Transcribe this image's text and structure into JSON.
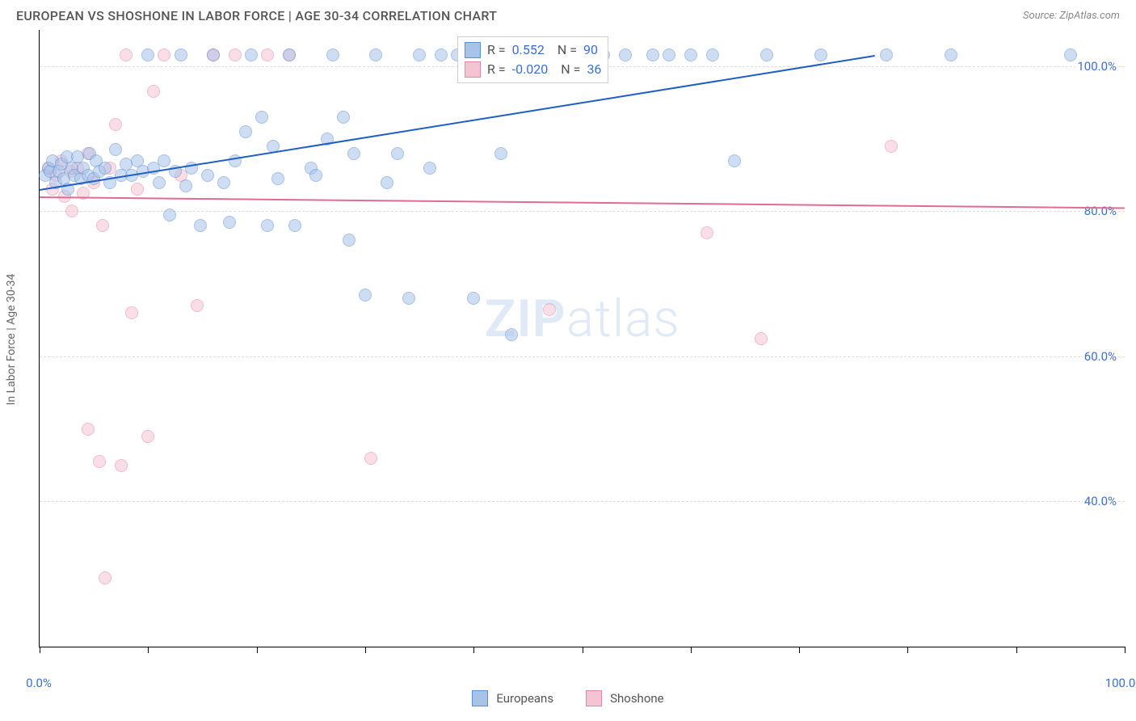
{
  "title": "EUROPEAN VS SHOSHONE IN LABOR FORCE | AGE 30-34 CORRELATION CHART",
  "source": "Source: ZipAtlas.com",
  "yaxis_label": "In Labor Force | Age 30-34",
  "watermark": {
    "part1": "ZIP",
    "part2": "atlas"
  },
  "chart": {
    "type": "scatter",
    "xlim": [
      0,
      100
    ],
    "ylim": [
      20,
      105
    ],
    "yticks": [
      40,
      60,
      80,
      100
    ],
    "ytick_labels": [
      "40.0%",
      "60.0%",
      "80.0%",
      "100.0%"
    ],
    "xticks": [
      0,
      10,
      20,
      30,
      40,
      50,
      60,
      70,
      80,
      90,
      100
    ],
    "xtick_labels": {
      "0": "0.0%",
      "100": "100.0%"
    },
    "grid_color": "#dddddd",
    "background_color": "#ffffff",
    "point_radius": 8,
    "point_opacity": 0.55,
    "series": [
      {
        "name": "Europeans",
        "fill": "#a8c3e8",
        "stroke": "#5a8fd6",
        "reg_color": "#1e5fc4",
        "reg_line": {
          "x1": 0,
          "y1": 83,
          "x2": 77,
          "y2": 101.5
        },
        "r_value": "0.552",
        "n_value": "90",
        "points": [
          [
            0.5,
            85
          ],
          [
            0.8,
            86
          ],
          [
            1.0,
            85.5
          ],
          [
            1.2,
            87
          ],
          [
            1.5,
            84
          ],
          [
            1.8,
            85.5
          ],
          [
            2.0,
            86.5
          ],
          [
            2.2,
            84.5
          ],
          [
            2.5,
            87.5
          ],
          [
            2.6,
            83
          ],
          [
            3.0,
            86
          ],
          [
            3.2,
            85
          ],
          [
            3.5,
            87.5
          ],
          [
            3.8,
            84.5
          ],
          [
            4.0,
            86
          ],
          [
            4.5,
            85
          ],
          [
            4.6,
            88
          ],
          [
            5.0,
            84.5
          ],
          [
            5.2,
            87
          ],
          [
            5.5,
            85.5
          ],
          [
            6.0,
            86
          ],
          [
            6.5,
            84
          ],
          [
            7.0,
            88.5
          ],
          [
            7.5,
            85
          ],
          [
            8.0,
            86.5
          ],
          [
            8.5,
            85
          ],
          [
            9.0,
            87
          ],
          [
            9.5,
            85.5
          ],
          [
            10.0,
            101.5
          ],
          [
            10.5,
            86
          ],
          [
            11.0,
            84
          ],
          [
            11.5,
            87
          ],
          [
            12.0,
            79.5
          ],
          [
            12.5,
            85.5
          ],
          [
            13.0,
            101.5
          ],
          [
            13.5,
            83.5
          ],
          [
            14.0,
            86
          ],
          [
            14.8,
            78
          ],
          [
            15.5,
            85
          ],
          [
            16.0,
            101.5
          ],
          [
            17.0,
            84
          ],
          [
            17.5,
            78.5
          ],
          [
            18.0,
            87
          ],
          [
            19.0,
            91
          ],
          [
            19.5,
            101.5
          ],
          [
            20.5,
            93
          ],
          [
            21.0,
            78
          ],
          [
            21.5,
            89
          ],
          [
            22.0,
            84.5
          ],
          [
            23.0,
            101.5
          ],
          [
            23.5,
            78
          ],
          [
            25.0,
            86
          ],
          [
            25.5,
            85
          ],
          [
            26.5,
            90
          ],
          [
            27.0,
            101.5
          ],
          [
            28.0,
            93
          ],
          [
            28.5,
            76
          ],
          [
            29.0,
            88
          ],
          [
            30.0,
            68.5
          ],
          [
            31.0,
            101.5
          ],
          [
            32.0,
            84
          ],
          [
            33.0,
            88
          ],
          [
            34.0,
            68
          ],
          [
            35.0,
            101.5
          ],
          [
            36.0,
            86
          ],
          [
            37.0,
            101.5
          ],
          [
            38.5,
            101.5
          ],
          [
            40.0,
            68
          ],
          [
            41.0,
            101.5
          ],
          [
            42.5,
            88
          ],
          [
            43.5,
            63
          ],
          [
            44.0,
            101.5
          ],
          [
            45.0,
            101.5
          ],
          [
            46.0,
            101.5
          ],
          [
            47.5,
            101.5
          ],
          [
            48.0,
            101.5
          ],
          [
            49.0,
            101.5
          ],
          [
            51.0,
            101.5
          ],
          [
            52.0,
            101.5
          ],
          [
            54.0,
            101.5
          ],
          [
            56.5,
            101.5
          ],
          [
            58.0,
            101.5
          ],
          [
            60.0,
            101.5
          ],
          [
            62.0,
            101.5
          ],
          [
            64.0,
            87
          ],
          [
            67.0,
            101.5
          ],
          [
            72.0,
            101.5
          ],
          [
            78.0,
            101.5
          ],
          [
            84.0,
            101.5
          ],
          [
            95.0,
            101.5
          ]
        ]
      },
      {
        "name": "Shoshone",
        "fill": "#f5c4d2",
        "stroke": "#e785a5",
        "reg_color": "#e06c93",
        "reg_line": {
          "x1": 0,
          "y1": 82,
          "x2": 100,
          "y2": 80.5
        },
        "r_value": "-0.020",
        "n_value": "36",
        "points": [
          [
            0.8,
            86
          ],
          [
            1.2,
            83
          ],
          [
            1.5,
            85
          ],
          [
            2.0,
            87
          ],
          [
            2.3,
            82
          ],
          [
            2.8,
            85.5
          ],
          [
            3.0,
            80
          ],
          [
            3.5,
            86
          ],
          [
            4.0,
            82.5
          ],
          [
            4.5,
            88
          ],
          [
            5.0,
            84
          ],
          [
            5.8,
            78
          ],
          [
            6.5,
            86
          ],
          [
            7.0,
            92
          ],
          [
            8.0,
            101.5
          ],
          [
            8.5,
            66
          ],
          [
            9.0,
            83
          ],
          [
            10.5,
            96.5
          ],
          [
            11.5,
            101.5
          ],
          [
            13.0,
            85
          ],
          [
            14.5,
            67
          ],
          [
            16.0,
            101.5
          ],
          [
            18.0,
            101.5
          ],
          [
            21.0,
            101.5
          ],
          [
            23.0,
            101.5
          ],
          [
            30.5,
            46
          ],
          [
            47.0,
            66.5
          ],
          [
            50.0,
            101.5
          ],
          [
            61.5,
            77
          ],
          [
            66.5,
            62.5
          ],
          [
            78.5,
            89
          ],
          [
            4.5,
            50
          ],
          [
            5.5,
            45.5
          ],
          [
            7.5,
            45
          ],
          [
            10.0,
            49
          ],
          [
            6.0,
            29.5
          ]
        ]
      }
    ]
  },
  "stats_box": {
    "top_pct": 1.0,
    "left_pct": 38.5,
    "rows": [
      {
        "series": 0,
        "r_label": "R =",
        "n_label": "N ="
      },
      {
        "series": 1,
        "r_label": "R =",
        "n_label": "N ="
      }
    ]
  },
  "bottom_legend": [
    {
      "series": 0,
      "label": "Europeans"
    },
    {
      "series": 1,
      "label": "Shoshone"
    }
  ]
}
